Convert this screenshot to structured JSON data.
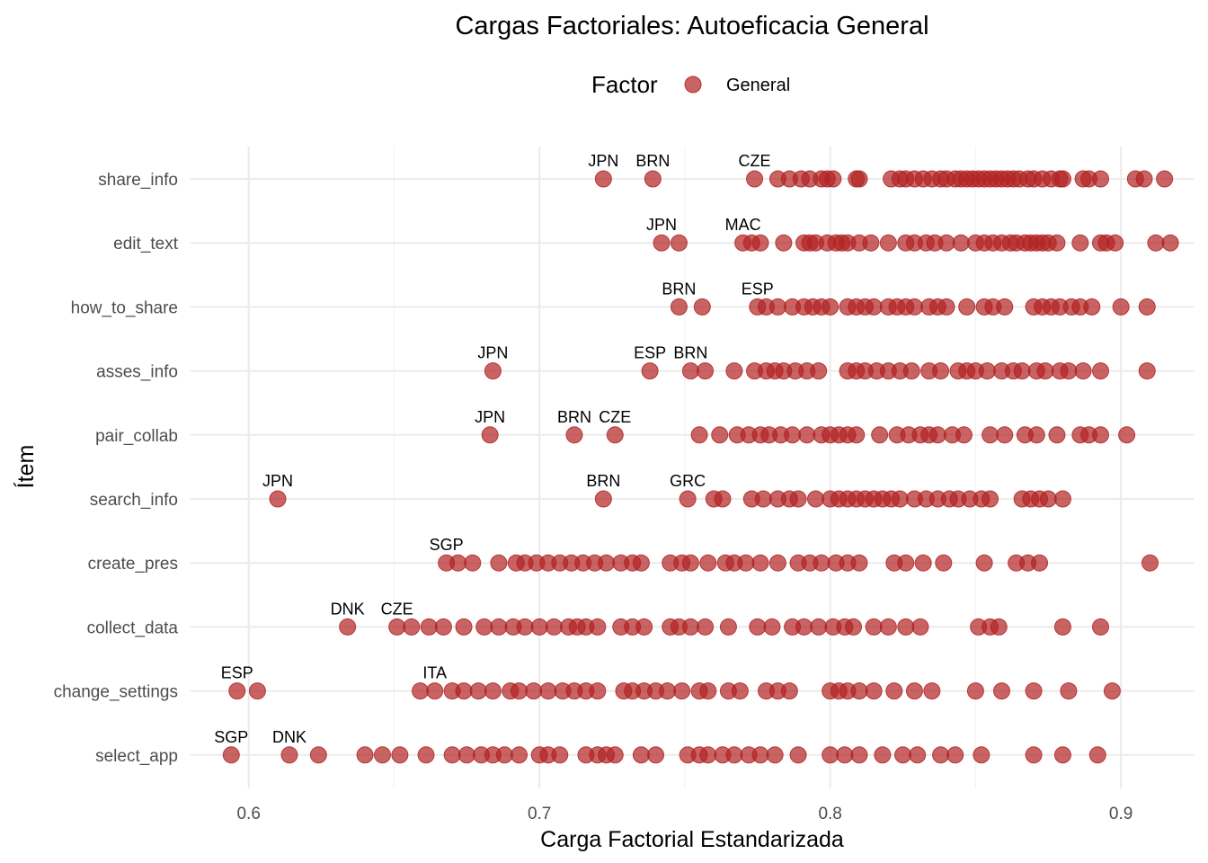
{
  "chart_data": {
    "type": "scatter",
    "title": "Cargas Factoriales: Autoeficacia General",
    "xlabel": "Carga Factorial Estandarizada",
    "ylabel": "Ítem",
    "xlim": [
      0.58,
      0.925
    ],
    "x_ticks": [
      0.6,
      0.7,
      0.8,
      0.9
    ],
    "x_tick_labels": [
      "0.6",
      "0.7",
      "0.8",
      "0.9"
    ],
    "grid": true,
    "legend": {
      "title": "Factor",
      "position": "top",
      "entries": [
        {
          "label": "General",
          "color": "#b22222"
        }
      ]
    },
    "point_color": "#b22222",
    "categories": [
      "share_info",
      "edit_text",
      "how_to_share",
      "asses_info",
      "pair_collab",
      "search_info",
      "create_pres",
      "collect_data",
      "change_settings",
      "select_app"
    ],
    "series": [
      {
        "item": "share_info",
        "values": [
          0.722,
          0.739,
          0.774,
          0.782,
          0.786,
          0.79,
          0.793,
          0.797,
          0.799,
          0.801,
          0.809,
          0.81,
          0.821,
          0.824,
          0.826,
          0.829,
          0.832,
          0.835,
          0.838,
          0.84,
          0.843,
          0.845,
          0.847,
          0.849,
          0.851,
          0.853,
          0.855,
          0.857,
          0.859,
          0.861,
          0.863,
          0.865,
          0.868,
          0.87,
          0.873,
          0.876,
          0.879,
          0.88,
          0.887,
          0.889,
          0.893,
          0.905,
          0.908,
          0.915
        ],
        "labels": [
          {
            "x": 0.722,
            "text": "JPN"
          },
          {
            "x": 0.739,
            "text": "BRN"
          },
          {
            "x": 0.774,
            "text": "CZE"
          }
        ]
      },
      {
        "item": "edit_text",
        "values": [
          0.742,
          0.748,
          0.77,
          0.773,
          0.776,
          0.784,
          0.791,
          0.793,
          0.795,
          0.799,
          0.802,
          0.804,
          0.806,
          0.81,
          0.814,
          0.82,
          0.826,
          0.829,
          0.833,
          0.836,
          0.84,
          0.845,
          0.85,
          0.853,
          0.856,
          0.859,
          0.862,
          0.864,
          0.867,
          0.869,
          0.871,
          0.873,
          0.875,
          0.878,
          0.886,
          0.893,
          0.895,
          0.898,
          0.912,
          0.917
        ],
        "labels": [
          {
            "x": 0.742,
            "text": "JPN"
          },
          {
            "x": 0.77,
            "text": "MAC"
          }
        ]
      },
      {
        "item": "how_to_share",
        "values": [
          0.748,
          0.756,
          0.775,
          0.778,
          0.782,
          0.787,
          0.791,
          0.794,
          0.797,
          0.8,
          0.806,
          0.809,
          0.812,
          0.815,
          0.82,
          0.823,
          0.826,
          0.829,
          0.834,
          0.837,
          0.84,
          0.847,
          0.853,
          0.856,
          0.86,
          0.87,
          0.873,
          0.876,
          0.879,
          0.883,
          0.886,
          0.89,
          0.9,
          0.909
        ],
        "labels": [
          {
            "x": 0.748,
            "text": "BRN"
          },
          {
            "x": 0.775,
            "text": "ESP"
          }
        ]
      },
      {
        "item": "asses_info",
        "values": [
          0.684,
          0.738,
          0.752,
          0.757,
          0.767,
          0.774,
          0.778,
          0.781,
          0.784,
          0.788,
          0.792,
          0.796,
          0.806,
          0.809,
          0.812,
          0.816,
          0.82,
          0.824,
          0.828,
          0.834,
          0.838,
          0.844,
          0.847,
          0.85,
          0.854,
          0.859,
          0.863,
          0.866,
          0.871,
          0.874,
          0.879,
          0.882,
          0.887,
          0.893,
          0.909
        ],
        "labels": [
          {
            "x": 0.684,
            "text": "JPN"
          },
          {
            "x": 0.738,
            "text": "ESP"
          },
          {
            "x": 0.752,
            "text": "BRN"
          }
        ]
      },
      {
        "item": "pair_collab",
        "values": [
          0.683,
          0.712,
          0.726,
          0.755,
          0.762,
          0.768,
          0.772,
          0.776,
          0.779,
          0.783,
          0.787,
          0.792,
          0.797,
          0.8,
          0.803,
          0.806,
          0.809,
          0.817,
          0.823,
          0.827,
          0.831,
          0.834,
          0.837,
          0.842,
          0.846,
          0.855,
          0.86,
          0.867,
          0.871,
          0.878,
          0.886,
          0.889,
          0.893,
          0.902
        ],
        "labels": [
          {
            "x": 0.683,
            "text": "JPN"
          },
          {
            "x": 0.712,
            "text": "BRN"
          },
          {
            "x": 0.726,
            "text": "CZE"
          }
        ]
      },
      {
        "item": "search_info",
        "values": [
          0.61,
          0.722,
          0.751,
          0.76,
          0.763,
          0.773,
          0.777,
          0.782,
          0.786,
          0.789,
          0.795,
          0.8,
          0.803,
          0.806,
          0.809,
          0.812,
          0.815,
          0.818,
          0.821,
          0.824,
          0.829,
          0.833,
          0.837,
          0.841,
          0.844,
          0.848,
          0.852,
          0.855,
          0.866,
          0.869,
          0.872,
          0.875,
          0.88
        ],
        "labels": [
          {
            "x": 0.61,
            "text": "JPN"
          },
          {
            "x": 0.722,
            "text": "BRN"
          },
          {
            "x": 0.751,
            "text": "GRC"
          }
        ]
      },
      {
        "item": "create_pres",
        "values": [
          0.668,
          0.672,
          0.677,
          0.686,
          0.692,
          0.695,
          0.699,
          0.703,
          0.707,
          0.711,
          0.715,
          0.719,
          0.723,
          0.728,
          0.732,
          0.735,
          0.745,
          0.749,
          0.752,
          0.758,
          0.764,
          0.767,
          0.771,
          0.776,
          0.782,
          0.789,
          0.793,
          0.797,
          0.802,
          0.806,
          0.81,
          0.822,
          0.826,
          0.832,
          0.839,
          0.853,
          0.864,
          0.868,
          0.872,
          0.91
        ],
        "labels": [
          {
            "x": 0.668,
            "text": "SGP"
          }
        ]
      },
      {
        "item": "collect_data",
        "values": [
          0.634,
          0.651,
          0.656,
          0.662,
          0.667,
          0.674,
          0.681,
          0.686,
          0.691,
          0.695,
          0.7,
          0.705,
          0.71,
          0.713,
          0.716,
          0.72,
          0.728,
          0.732,
          0.736,
          0.745,
          0.748,
          0.752,
          0.757,
          0.765,
          0.775,
          0.78,
          0.787,
          0.791,
          0.796,
          0.801,
          0.805,
          0.808,
          0.815,
          0.82,
          0.826,
          0.831,
          0.851,
          0.855,
          0.858,
          0.88,
          0.893
        ],
        "labels": [
          {
            "x": 0.634,
            "text": "DNK"
          },
          {
            "x": 0.651,
            "text": "CZE"
          }
        ]
      },
      {
        "item": "change_settings",
        "values": [
          0.596,
          0.603,
          0.659,
          0.664,
          0.67,
          0.674,
          0.679,
          0.684,
          0.69,
          0.693,
          0.698,
          0.703,
          0.708,
          0.712,
          0.716,
          0.72,
          0.729,
          0.732,
          0.736,
          0.74,
          0.744,
          0.749,
          0.755,
          0.758,
          0.765,
          0.769,
          0.778,
          0.782,
          0.786,
          0.8,
          0.803,
          0.806,
          0.81,
          0.815,
          0.822,
          0.829,
          0.835,
          0.85,
          0.859,
          0.87,
          0.882,
          0.897
        ],
        "labels": [
          {
            "x": 0.596,
            "text": "ESP"
          },
          {
            "x": 0.664,
            "text": "ITA"
          }
        ]
      },
      {
        "item": "select_app",
        "values": [
          0.594,
          0.614,
          0.624,
          0.64,
          0.646,
          0.652,
          0.661,
          0.67,
          0.675,
          0.68,
          0.684,
          0.688,
          0.693,
          0.7,
          0.703,
          0.707,
          0.716,
          0.72,
          0.723,
          0.726,
          0.735,
          0.74,
          0.751,
          0.755,
          0.758,
          0.763,
          0.767,
          0.772,
          0.776,
          0.781,
          0.789,
          0.8,
          0.805,
          0.81,
          0.818,
          0.825,
          0.83,
          0.838,
          0.843,
          0.852,
          0.87,
          0.88,
          0.892
        ],
        "labels": [
          {
            "x": 0.594,
            "text": "SGP"
          },
          {
            "x": 0.614,
            "text": "DNK"
          }
        ]
      }
    ]
  }
}
